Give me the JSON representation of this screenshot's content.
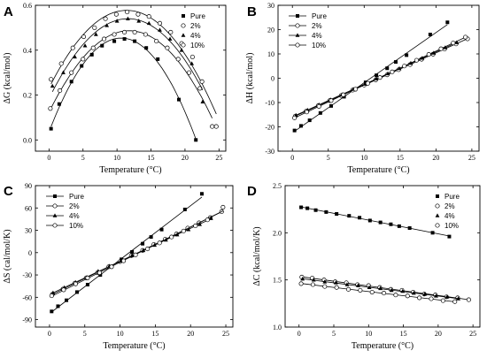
{
  "chart_data": [
    {
      "type": "scatter",
      "panel_letter": "A",
      "xlabel": "Temperature (°C)",
      "ylabel": "ΔG (kcal/mol)",
      "xlim": [
        -2,
        26
      ],
      "ylim": [
        -0.05,
        0.6
      ],
      "xticks": [
        0,
        5,
        10,
        15,
        20,
        25
      ],
      "yticks": [
        0.0,
        0.2,
        0.4,
        0.6
      ],
      "tick_decimals": 1,
      "grid": false,
      "legend_position": "top-right",
      "fit": "quadratic",
      "series": [
        {
          "name": "Pure",
          "marker": "square",
          "x": [
            0.3,
            1.5,
            3.3,
            4.8,
            6.3,
            7.8,
            9.6,
            11.1,
            12.6,
            14.3,
            16.0,
            19.1,
            21.6
          ],
          "y": [
            0.05,
            0.16,
            0.26,
            0.33,
            0.38,
            0.42,
            0.44,
            0.45,
            0.44,
            0.41,
            0.36,
            0.18,
            0.0
          ]
        },
        {
          "name": "2%",
          "marker": "circle-open",
          "x": [
            0.2,
            1.6,
            3.3,
            5.0,
            6.5,
            8.1,
            9.6,
            11.1,
            12.6,
            14.2,
            15.8,
            17.4,
            19.0,
            20.6,
            22.2,
            24.0
          ],
          "y": [
            0.14,
            0.22,
            0.3,
            0.36,
            0.41,
            0.45,
            0.47,
            0.48,
            0.48,
            0.47,
            0.44,
            0.41,
            0.36,
            0.3,
            0.23,
            0.06
          ]
        },
        {
          "name": "4%",
          "marker": "triangle",
          "x": [
            0.5,
            2.1,
            3.8,
            5.3,
            6.9,
            8.5,
            10.0,
            11.6,
            13.2,
            14.7,
            16.3,
            17.8,
            19.5,
            21.0,
            22.6
          ],
          "y": [
            0.24,
            0.3,
            0.37,
            0.42,
            0.47,
            0.51,
            0.53,
            0.54,
            0.53,
            0.52,
            0.49,
            0.45,
            0.4,
            0.34,
            0.17
          ]
        },
        {
          "name": "10%",
          "marker": "circle-open",
          "x": [
            0.3,
            1.8,
            3.5,
            5.1,
            6.7,
            8.3,
            9.9,
            11.5,
            13.1,
            14.7,
            16.3,
            17.9,
            19.5,
            21.1,
            22.5,
            24.6
          ],
          "y": [
            0.27,
            0.34,
            0.41,
            0.46,
            0.5,
            0.54,
            0.56,
            0.57,
            0.56,
            0.55,
            0.52,
            0.48,
            0.43,
            0.37,
            0.26,
            0.06
          ]
        }
      ]
    },
    {
      "type": "scatter",
      "panel_letter": "B",
      "xlabel": "Temperature (°C)",
      "ylabel": "ΔH (kcal/mol)",
      "xlim": [
        -2,
        26
      ],
      "ylim": [
        -30,
        30
      ],
      "xticks": [
        0,
        5,
        10,
        15,
        20,
        25
      ],
      "yticks": [
        -30,
        -20,
        -10,
        0,
        10,
        20,
        30
      ],
      "tick_decimals": 0,
      "grid": false,
      "legend_position": "top-left",
      "fit": "linear",
      "series": [
        {
          "name": "Pure",
          "marker": "square",
          "x": [
            0.3,
            1.2,
            2.4,
            3.9,
            5.4,
            7.2,
            8.7,
            10.2,
            11.7,
            13.2,
            14.4,
            15.9,
            19.2,
            21.6
          ],
          "y": [
            -21.5,
            -19.6,
            -17.3,
            -14.3,
            -11.4,
            -7.6,
            -4.7,
            -1.7,
            1.2,
            4.1,
            6.7,
            9.5,
            18.0,
            23.0
          ]
        },
        {
          "name": "2%",
          "marker": "circle-open",
          "x": [
            0.4,
            1.9,
            3.6,
            5.2,
            6.8,
            8.4,
            10.0,
            11.6,
            13.2,
            14.8,
            16.4,
            18.0,
            19.6,
            21.2,
            22.8,
            24.4
          ],
          "y": [
            -15.6,
            -13.6,
            -11.3,
            -9.2,
            -7.1,
            -4.9,
            -2.8,
            -0.7,
            1.4,
            3.5,
            5.6,
            7.8,
            9.9,
            12.0,
            14.1,
            16.2
          ]
        },
        {
          "name": "4%",
          "marker": "triangle",
          "x": [
            0.5,
            2.1,
            3.7,
            5.3,
            6.9,
            8.5,
            10.1,
            11.7,
            13.3,
            14.9,
            16.5,
            18.1,
            19.7,
            21.3,
            22.9
          ],
          "y": [
            -15.2,
            -13.1,
            -10.9,
            -8.8,
            -6.7,
            -4.5,
            -2.4,
            -0.2,
            1.9,
            4.0,
            6.2,
            8.3,
            10.4,
            12.6,
            14.7
          ]
        },
        {
          "name": "10%",
          "marker": "circle-open",
          "x": [
            0.3,
            2.0,
            3.7,
            5.4,
            7.1,
            8.8,
            10.5,
            12.2,
            13.9,
            15.6,
            17.3,
            19.0,
            20.7,
            22.4,
            24.1
          ],
          "y": [
            -16.3,
            -13.9,
            -11.6,
            -9.2,
            -6.8,
            -4.5,
            -2.1,
            0.3,
            2.6,
            5.0,
            7.4,
            9.8,
            12.1,
            14.5,
            16.9
          ]
        }
      ]
    },
    {
      "type": "scatter",
      "panel_letter": "C",
      "xlabel": "Temperature (°C)",
      "ylabel": "ΔS (cal/mol/K)",
      "xlim": [
        -2,
        26
      ],
      "ylim": [
        -100,
        90
      ],
      "xticks": [
        0,
        5,
        10,
        15,
        20,
        25
      ],
      "yticks": [
        -90,
        -60,
        -30,
        0,
        30,
        60,
        90
      ],
      "tick_decimals": 0,
      "grid": false,
      "legend_position": "top-left",
      "fit": "linear",
      "series": [
        {
          "name": "Pure",
          "marker": "square",
          "x": [
            0.3,
            1.2,
            2.4,
            3.9,
            5.4,
            7.2,
            8.7,
            10.2,
            11.7,
            13.2,
            14.4,
            15.9,
            19.2,
            21.6
          ],
          "y": [
            -79,
            -72,
            -64,
            -53,
            -43,
            -30,
            -19,
            -9,
            1,
            12,
            21,
            31,
            58,
            79
          ]
        },
        {
          "name": "2%",
          "marker": "circle-open",
          "x": [
            0.4,
            1.9,
            3.6,
            5.2,
            6.8,
            8.4,
            10.0,
            11.6,
            13.2,
            14.8,
            16.4,
            18.0,
            19.6,
            21.2,
            22.8,
            24.4
          ],
          "y": [
            -56,
            -49,
            -41,
            -34,
            -27,
            -19,
            -12,
            -4,
            3,
            11,
            18,
            25,
            33,
            40,
            47,
            55
          ]
        },
        {
          "name": "4%",
          "marker": "triangle",
          "x": [
            0.5,
            2.1,
            3.7,
            5.3,
            6.9,
            8.5,
            10.1,
            11.7,
            13.3,
            14.9,
            16.5,
            18.1,
            19.7,
            21.3,
            22.9
          ],
          "y": [
            -54,
            -47,
            -40,
            -33,
            -25,
            -18,
            -11,
            -4,
            3,
            10,
            17,
            24,
            31,
            38,
            46
          ]
        },
        {
          "name": "10%",
          "marker": "circle-open",
          "x": [
            0.3,
            2.0,
            3.7,
            5.4,
            7.1,
            8.8,
            10.5,
            12.2,
            13.9,
            15.6,
            17.3,
            19.0,
            20.7,
            22.4,
            24.6
          ],
          "y": [
            -58,
            -50,
            -42,
            -34,
            -27,
            -19,
            -11,
            -3,
            5,
            13,
            21,
            29,
            36,
            44,
            61
          ]
        }
      ]
    },
    {
      "type": "scatter",
      "panel_letter": "D",
      "xlabel": "Temperature (°C)",
      "ylabel": "ΔC (kcal/mol/K)",
      "xlim": [
        -2,
        26
      ],
      "ylim": [
        1.0,
        2.5
      ],
      "xticks": [
        0,
        5,
        10,
        15,
        20,
        25
      ],
      "yticks": [
        1.0,
        1.5,
        2.0,
        2.5
      ],
      "tick_decimals": 1,
      "grid": false,
      "legend_position": "top-right",
      "fit": "linear",
      "series": [
        {
          "name": "Pure",
          "marker": "square",
          "x": [
            0.3,
            1.2,
            2.4,
            3.9,
            5.4,
            7.2,
            8.7,
            10.2,
            11.7,
            13.2,
            14.4,
            15.9,
            19.2,
            21.6
          ],
          "y": [
            2.27,
            2.26,
            2.24,
            2.22,
            2.2,
            2.18,
            2.16,
            2.13,
            2.11,
            2.09,
            2.07,
            2.05,
            2.0,
            1.96
          ]
        },
        {
          "name": "2%",
          "marker": "circle-open",
          "x": [
            0.4,
            1.9,
            3.6,
            5.2,
            6.8,
            8.4,
            10.0,
            11.6,
            13.2,
            14.8,
            16.4,
            18.0,
            19.6,
            21.2,
            22.8,
            24.4
          ],
          "y": [
            1.53,
            1.52,
            1.5,
            1.48,
            1.47,
            1.45,
            1.44,
            1.42,
            1.4,
            1.39,
            1.37,
            1.35,
            1.34,
            1.32,
            1.31,
            1.29
          ]
        },
        {
          "name": "4%",
          "marker": "triangle",
          "x": [
            0.5,
            2.1,
            3.7,
            5.3,
            6.9,
            8.5,
            10.1,
            11.7,
            13.3,
            14.9,
            16.5,
            18.1,
            19.7,
            21.3,
            22.9
          ],
          "y": [
            1.51,
            1.5,
            1.48,
            1.47,
            1.45,
            1.44,
            1.42,
            1.41,
            1.39,
            1.38,
            1.36,
            1.35,
            1.33,
            1.32,
            1.3
          ]
        },
        {
          "name": "10%",
          "marker": "circle-open",
          "x": [
            0.3,
            2.0,
            3.7,
            5.4,
            7.1,
            8.8,
            10.5,
            12.2,
            13.9,
            15.6,
            17.3,
            19.0,
            20.7,
            22.4
          ],
          "y": [
            1.46,
            1.45,
            1.43,
            1.42,
            1.4,
            1.39,
            1.37,
            1.36,
            1.34,
            1.33,
            1.31,
            1.3,
            1.28,
            1.27
          ]
        }
      ]
    }
  ]
}
